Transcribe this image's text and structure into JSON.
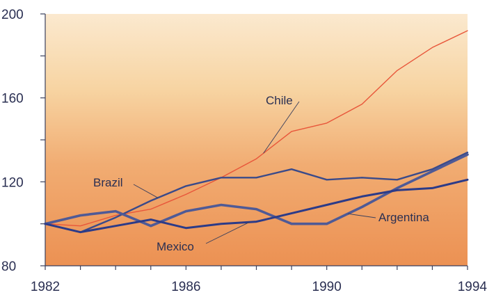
{
  "chart_data": {
    "type": "line",
    "title": "",
    "xlabel": "",
    "ylabel": "",
    "x": [
      1982,
      1983,
      1984,
      1985,
      1986,
      1987,
      1988,
      1989,
      1990,
      1991,
      1992,
      1993,
      1994
    ],
    "xlim": [
      1982,
      1994
    ],
    "ylim": [
      80,
      200
    ],
    "x_ticks": [
      "1982",
      "1986",
      "1990",
      "1994"
    ],
    "y_ticks": [
      "80",
      "120",
      "160",
      "200"
    ],
    "grid": false,
    "legend": "none",
    "series": [
      {
        "name": "Chile",
        "color": "#e8563a",
        "values": [
          100,
          99,
          104,
          107,
          114,
          122,
          131,
          144,
          148,
          157,
          173,
          184,
          192
        ]
      },
      {
        "name": "Brazil",
        "color": "#3a4a8a",
        "values": [
          100,
          96,
          103,
          111,
          118,
          122,
          122,
          126,
          121,
          122,
          121,
          126,
          134
        ]
      },
      {
        "name": "Argentina",
        "color": "#4f5a96",
        "values": [
          100,
          104,
          106,
          99,
          106,
          109,
          107,
          100,
          100,
          108,
          117,
          125,
          133
        ]
      },
      {
        "name": "Mexico",
        "color": "#2c3b88",
        "values": [
          100,
          96,
          99,
          102,
          98,
          100,
          101,
          105,
          109,
          113,
          116,
          117,
          121
        ]
      }
    ]
  }
}
